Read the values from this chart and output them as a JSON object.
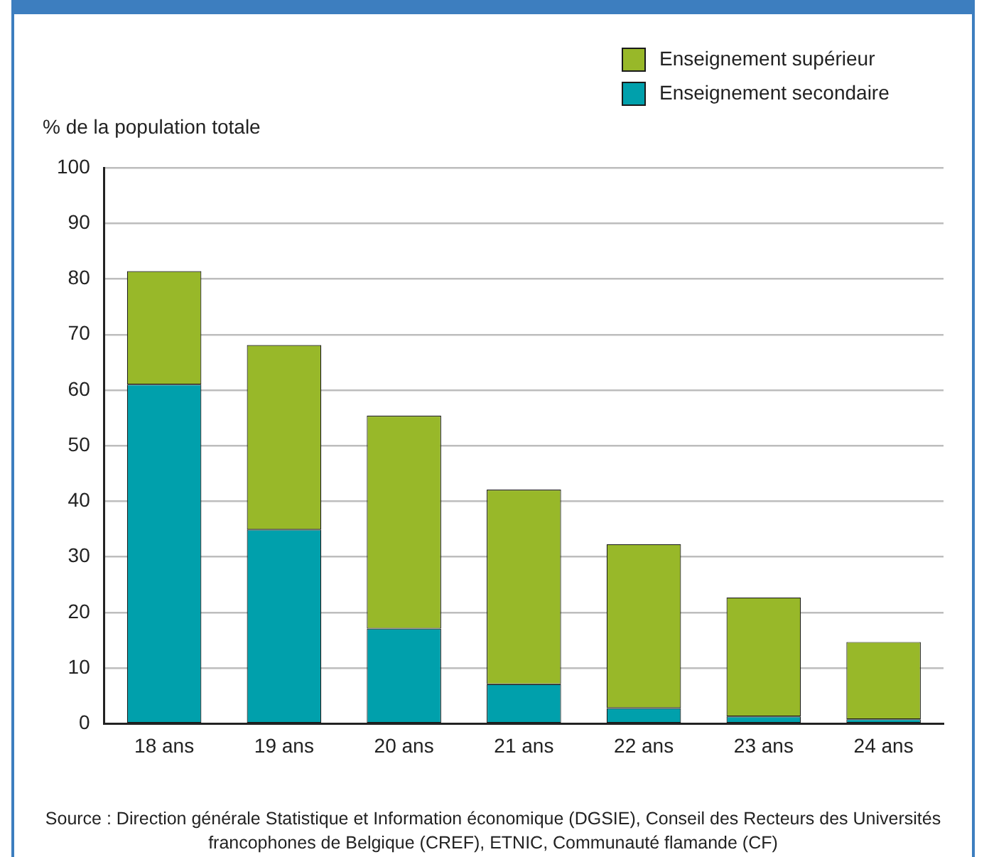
{
  "chart_data": {
    "type": "bar",
    "ylabel": "% de la population totale",
    "categories": [
      "18 ans",
      "19 ans",
      "20 ans",
      "21 ans",
      "22 ans",
      "23 ans",
      "24 ans"
    ],
    "series": [
      {
        "name": "Enseignement secondaire",
        "color": "#00a0ac",
        "values": [
          61.0,
          34.9,
          17.1,
          7.1,
          2.8,
          1.3,
          0.8
        ]
      },
      {
        "name": "Enseignement supérieur",
        "color": "#98b829",
        "values": [
          20.4,
          33.2,
          38.3,
          35.0,
          29.5,
          21.4,
          13.9
        ]
      }
    ],
    "stacked": true,
    "ylim": [
      0,
      100
    ],
    "yticks": [
      0,
      10,
      20,
      30,
      40,
      50,
      60,
      70,
      80,
      90,
      100
    ],
    "grid": "y",
    "legend": "top right",
    "annotations": [
      "Source : Direction générale Statistique et Information économique (DGSIE), Conseil des Recteurs des Universités francophones de Belgique (CREF), ETNIC, Communauté flamande (CF)"
    ]
  }
}
